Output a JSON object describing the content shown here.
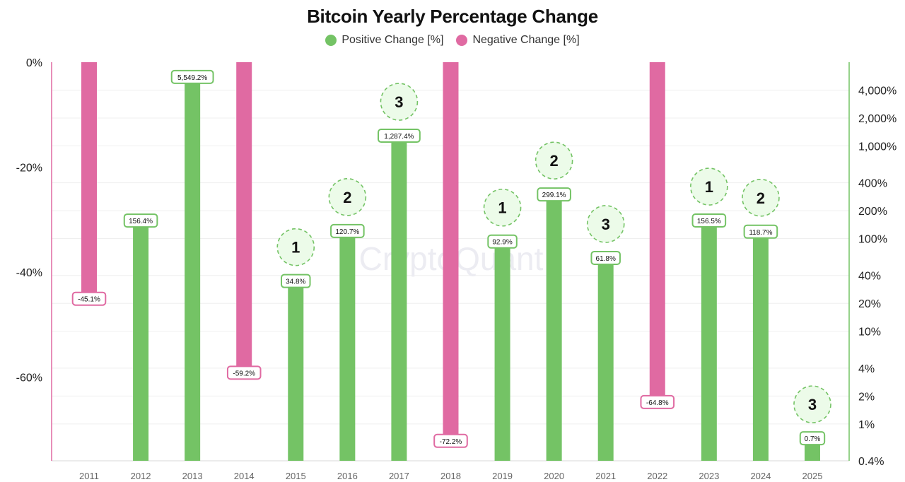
{
  "chart_data": {
    "type": "bar",
    "title": "Bitcoin Yearly Percentage Change",
    "legend": {
      "placement": "top",
      "items": [
        {
          "name": "Positive Change [%]",
          "color": "#74c365"
        },
        {
          "name": "Negative Change [%]",
          "color": "#e06aa2"
        }
      ]
    },
    "categories": [
      "2011",
      "2012",
      "2013",
      "2014",
      "2015",
      "2016",
      "2017",
      "2018",
      "2019",
      "2020",
      "2021",
      "2022",
      "2023",
      "2024",
      "2025"
    ],
    "series": [
      {
        "name": "Positive Change [%]",
        "axis": "right",
        "color": "#74c365",
        "values": [
          null,
          156.4,
          5549.2,
          null,
          34.8,
          120.7,
          1287.4,
          null,
          92.9,
          299.1,
          61.8,
          null,
          156.5,
          118.7,
          0.7
        ]
      },
      {
        "name": "Negative Change [%]",
        "axis": "left",
        "color": "#e06aa2",
        "values": [
          -45.1,
          null,
          null,
          -59.2,
          null,
          null,
          null,
          -72.2,
          null,
          null,
          null,
          -64.8,
          null,
          null,
          null
        ]
      }
    ],
    "data_labels": [
      "-45.1%",
      "156.4%",
      "5,549.2%",
      "-59.2%",
      "34.8%",
      "120.7%",
      "1,287.4%",
      "-72.2%",
      "92.9%",
      "299.1%",
      "61.8%",
      "-64.8%",
      "156.5%",
      "118.7%",
      "0.7%"
    ],
    "cycle_markers": [
      {
        "category": "2015",
        "label": "1"
      },
      {
        "category": "2016",
        "label": "2"
      },
      {
        "category": "2017",
        "label": "3"
      },
      {
        "category": "2019",
        "label": "1"
      },
      {
        "category": "2020",
        "label": "2"
      },
      {
        "category": "2021",
        "label": "3"
      },
      {
        "category": "2023",
        "label": "1"
      },
      {
        "category": "2024",
        "label": "2"
      },
      {
        "category": "2025",
        "label": "3"
      }
    ],
    "left_axis": {
      "scale": "linear",
      "ylim": [
        -76,
        0
      ],
      "ticks": [
        0,
        -20,
        -40,
        -60
      ],
      "tick_labels": [
        "0%",
        "-20%",
        "-40%",
        "-60%"
      ]
    },
    "right_axis": {
      "scale": "log",
      "ylim": [
        0.4,
        8000
      ],
      "ticks": [
        4000,
        2000,
        1000,
        400,
        200,
        100,
        40,
        20,
        10,
        4,
        2,
        1,
        0.4
      ],
      "tick_labels": [
        "4,000%",
        "2,000%",
        "1,000%",
        "400%",
        "200%",
        "100%",
        "40%",
        "20%",
        "10%",
        "4%",
        "2%",
        "1%",
        "0.4%"
      ]
    },
    "grid": true,
    "watermark": "CryptoQuant"
  }
}
